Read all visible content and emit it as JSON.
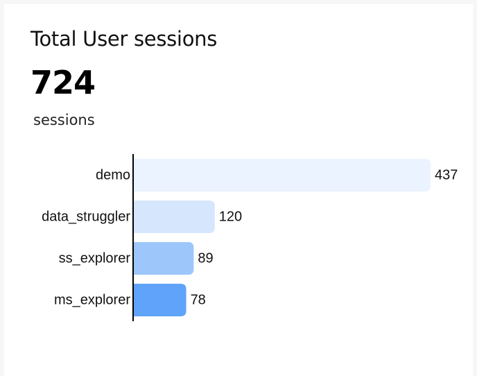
{
  "card": {
    "title": "Total User sessions",
    "total": "724",
    "unit": "sessions"
  },
  "chart_data": {
    "type": "bar",
    "orientation": "horizontal",
    "categories": [
      "demo",
      "data_struggler",
      "ss_explorer",
      "ms_explorer"
    ],
    "values": [
      437,
      120,
      89,
      78
    ],
    "title": "",
    "xlabel": "",
    "ylabel": "",
    "xlim": [
      0,
      437
    ],
    "grid": false,
    "legend": "none",
    "data_labels": true,
    "colors": [
      "#eaf3ff",
      "#d6e6fd",
      "#9dc6fb",
      "#5fa4fa"
    ]
  }
}
